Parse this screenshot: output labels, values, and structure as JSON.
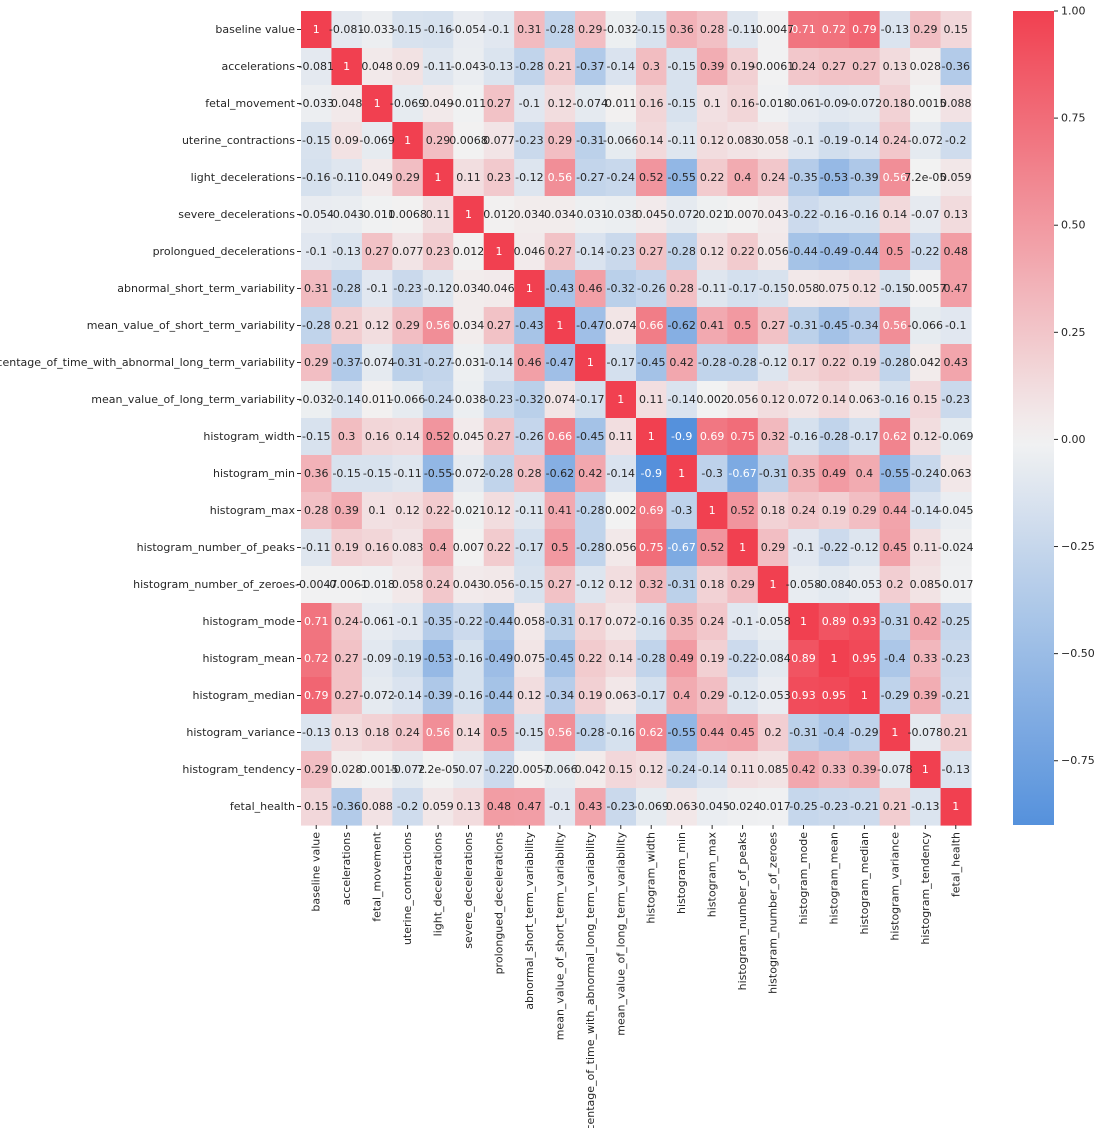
{
  "chart_data": {
    "type": "heatmap",
    "labels": [
      "baseline value",
      "accelerations",
      "fetal_movement",
      "uterine_contractions",
      "light_decelerations",
      "severe_decelerations",
      "prolongued_decelerations",
      "abnormal_short_term_variability",
      "mean_value_of_short_term_variability",
      "percentage_of_time_with_abnormal_long_term_variability",
      "mean_value_of_long_term_variability",
      "histogram_width",
      "histogram_min",
      "histogram_max",
      "histogram_number_of_peaks",
      "histogram_number_of_zeroes",
      "histogram_mode",
      "histogram_mean",
      "histogram_median",
      "histogram_variance",
      "histogram_tendency",
      "fetal_health"
    ],
    "cell_labels": [
      [
        "1",
        "-0.081",
        "-0.033",
        "-0.15",
        "-0.16",
        "-0.054",
        "-0.1",
        "0.31",
        "-0.28",
        "0.29",
        "-0.032",
        "-0.15",
        "0.36",
        "0.28",
        "-0.11",
        "-0.0047",
        "0.71",
        "0.72",
        "0.79",
        "-0.13",
        "0.29",
        "0.15"
      ],
      [
        "-0.081",
        "1",
        "0.048",
        "0.09",
        "-0.11",
        "-0.043",
        "-0.13",
        "-0.28",
        "0.21",
        "-0.37",
        "-0.14",
        "0.3",
        "-0.15",
        "0.39",
        "0.19",
        "-0.0061",
        "0.24",
        "0.27",
        "0.27",
        "0.13",
        "0.028",
        "-0.36"
      ],
      [
        "-0.033",
        "0.048",
        "1",
        "-0.069",
        "0.049",
        "-0.011",
        "0.27",
        "-0.1",
        "0.12",
        "-0.074",
        "0.011",
        "0.16",
        "-0.15",
        "0.1",
        "0.16",
        "-0.018",
        "-0.061",
        "-0.09",
        "-0.072",
        "0.18",
        "-0.0015",
        "0.088"
      ],
      [
        "-0.15",
        "0.09",
        "-0.069",
        "1",
        "0.29",
        "0.0068",
        "0.077",
        "-0.23",
        "0.29",
        "-0.31",
        "-0.066",
        "0.14",
        "-0.11",
        "0.12",
        "0.083",
        "0.058",
        "-0.1",
        "-0.19",
        "-0.14",
        "0.24",
        "-0.072",
        "-0.2"
      ],
      [
        "-0.16",
        "-0.11",
        "0.049",
        "0.29",
        "1",
        "0.11",
        "0.23",
        "-0.12",
        "0.56",
        "-0.27",
        "-0.24",
        "0.52",
        "-0.55",
        "0.22",
        "0.4",
        "0.24",
        "-0.35",
        "-0.53",
        "-0.39",
        "0.56",
        "7.2e-05",
        "0.059"
      ],
      [
        "-0.054",
        "-0.043",
        "-0.011",
        "0.0068",
        "0.11",
        "1",
        "0.012",
        "0.034",
        "0.034",
        "-0.031",
        "-0.038",
        "0.045",
        "-0.072",
        "-0.021",
        "0.007",
        "0.043",
        "-0.22",
        "-0.16",
        "-0.16",
        "0.14",
        "-0.07",
        "0.13"
      ],
      [
        "-0.1",
        "-0.13",
        "0.27",
        "0.077",
        "0.23",
        "0.012",
        "1",
        "0.046",
        "0.27",
        "-0.14",
        "-0.23",
        "0.27",
        "-0.28",
        "0.12",
        "0.22",
        "0.056",
        "-0.44",
        "-0.49",
        "-0.44",
        "0.5",
        "-0.22",
        "0.48"
      ],
      [
        "0.31",
        "-0.28",
        "-0.1",
        "-0.23",
        "-0.12",
        "0.034",
        "0.046",
        "1",
        "-0.43",
        "0.46",
        "-0.32",
        "-0.26",
        "0.28",
        "-0.11",
        "-0.17",
        "-0.15",
        "0.058",
        "0.075",
        "0.12",
        "-0.15",
        "-0.0057",
        "0.47"
      ],
      [
        "-0.28",
        "0.21",
        "0.12",
        "0.29",
        "0.56",
        "0.034",
        "0.27",
        "-0.43",
        "1",
        "-0.47",
        "0.074",
        "0.66",
        "-0.62",
        "0.41",
        "0.5",
        "0.27",
        "-0.31",
        "-0.45",
        "-0.34",
        "0.56",
        "-0.066",
        "-0.1"
      ],
      [
        "0.29",
        "-0.37",
        "-0.074",
        "-0.31",
        "-0.27",
        "-0.031",
        "-0.14",
        "0.46",
        "-0.47",
        "1",
        "-0.17",
        "-0.45",
        "0.42",
        "-0.28",
        "-0.28",
        "-0.12",
        "0.17",
        "0.22",
        "0.19",
        "-0.28",
        "0.042",
        "0.43"
      ],
      [
        "-0.032",
        "-0.14",
        "0.011",
        "-0.066",
        "-0.24",
        "-0.038",
        "-0.23",
        "-0.32",
        "0.074",
        "-0.17",
        "1",
        "0.11",
        "-0.14",
        "0.002",
        "0.056",
        "0.12",
        "0.072",
        "0.14",
        "0.063",
        "-0.16",
        "0.15",
        "-0.23"
      ],
      [
        "-0.15",
        "0.3",
        "0.16",
        "0.14",
        "0.52",
        "0.045",
        "0.27",
        "-0.26",
        "0.66",
        "-0.45",
        "0.11",
        "1",
        "-0.9",
        "0.69",
        "0.75",
        "0.32",
        "-0.16",
        "-0.28",
        "-0.17",
        "0.62",
        "0.12",
        "-0.069"
      ],
      [
        "0.36",
        "-0.15",
        "-0.15",
        "-0.11",
        "-0.55",
        "-0.072",
        "-0.28",
        "0.28",
        "-0.62",
        "0.42",
        "-0.14",
        "-0.9",
        "1",
        "-0.3",
        "-0.67",
        "-0.31",
        "0.35",
        "0.49",
        "0.4",
        "-0.55",
        "-0.24",
        "0.063"
      ],
      [
        "0.28",
        "0.39",
        "0.1",
        "0.12",
        "0.22",
        "-0.021",
        "0.12",
        "-0.11",
        "0.41",
        "-0.28",
        "0.002",
        "0.69",
        "-0.3",
        "1",
        "0.52",
        "0.18",
        "0.24",
        "0.19",
        "0.29",
        "0.44",
        "-0.14",
        "-0.045"
      ],
      [
        "-0.11",
        "0.19",
        "0.16",
        "0.083",
        "0.4",
        "0.007",
        "0.22",
        "-0.17",
        "0.5",
        "-0.28",
        "0.056",
        "0.75",
        "-0.67",
        "0.52",
        "1",
        "0.29",
        "-0.1",
        "-0.22",
        "-0.12",
        "0.45",
        "0.11",
        "-0.024"
      ],
      [
        "-0.0047",
        "-0.0061",
        "-0.018",
        "0.058",
        "0.24",
        "0.043",
        "0.056",
        "-0.15",
        "0.27",
        "-0.12",
        "0.12",
        "0.32",
        "-0.31",
        "0.18",
        "0.29",
        "1",
        "-0.058",
        "-0.084",
        "-0.053",
        "0.2",
        "0.085",
        "-0.017"
      ],
      [
        "0.71",
        "0.24",
        "-0.061",
        "-0.1",
        "-0.35",
        "-0.22",
        "-0.44",
        "0.058",
        "-0.31",
        "0.17",
        "0.072",
        "-0.16",
        "0.35",
        "0.24",
        "-0.1",
        "-0.058",
        "1",
        "0.89",
        "0.93",
        "-0.31",
        "0.42",
        "-0.25"
      ],
      [
        "0.72",
        "0.27",
        "-0.09",
        "-0.19",
        "-0.53",
        "-0.16",
        "-0.49",
        "0.075",
        "-0.45",
        "0.22",
        "0.14",
        "-0.28",
        "0.49",
        "0.19",
        "-0.22",
        "-0.084",
        "0.89",
        "1",
        "0.95",
        "-0.4",
        "0.33",
        "-0.23"
      ],
      [
        "0.79",
        "0.27",
        "-0.072",
        "-0.14",
        "-0.39",
        "-0.16",
        "-0.44",
        "0.12",
        "-0.34",
        "0.19",
        "0.063",
        "-0.17",
        "0.4",
        "0.29",
        "-0.12",
        "-0.053",
        "0.93",
        "0.95",
        "1",
        "-0.29",
        "0.39",
        "-0.21"
      ],
      [
        "-0.13",
        "0.13",
        "0.18",
        "0.24",
        "0.56",
        "0.14",
        "0.5",
        "-0.15",
        "0.56",
        "-0.28",
        "-0.16",
        "0.62",
        "-0.55",
        "0.44",
        "0.45",
        "0.2",
        "-0.31",
        "-0.4",
        "-0.29",
        "1",
        "-0.078",
        "0.21"
      ],
      [
        "0.29",
        "0.028",
        "-0.0015",
        "-0.072",
        "7.2e-05",
        "-0.07",
        "-0.22",
        "-0.0057",
        "-0.066",
        "0.042",
        "0.15",
        "0.12",
        "-0.24",
        "-0.14",
        "0.11",
        "0.085",
        "0.42",
        "0.33",
        "0.39",
        "-0.078",
        "1",
        "-0.13"
      ],
      [
        "0.15",
        "-0.36",
        "0.088",
        "-0.2",
        "0.059",
        "0.13",
        "0.48",
        "0.47",
        "-0.1",
        "0.43",
        "-0.23",
        "-0.069",
        "0.063",
        "-0.045",
        "-0.024",
        "-0.017",
        "-0.25",
        "-0.23",
        "-0.21",
        "0.21",
        "-0.13",
        "1"
      ]
    ],
    "colorbar": {
      "vmin": -0.9,
      "vmax": 1.0,
      "ticks": [
        1.0,
        0.75,
        0.5,
        0.25,
        0.0,
        -0.25,
        -0.5,
        -0.75
      ],
      "tick_labels": [
        "1.00",
        "0.75",
        "0.50",
        "0.25",
        "0.00",
        "−0.25",
        "−0.50",
        "−0.75"
      ]
    },
    "colors": {
      "negative": "#5591dc",
      "center": "#f2f2f2",
      "positive": "#f14050"
    },
    "annotation_color_light": "#ffffff",
    "annotation_color_dark": "#262626",
    "label_color": "#262626"
  }
}
